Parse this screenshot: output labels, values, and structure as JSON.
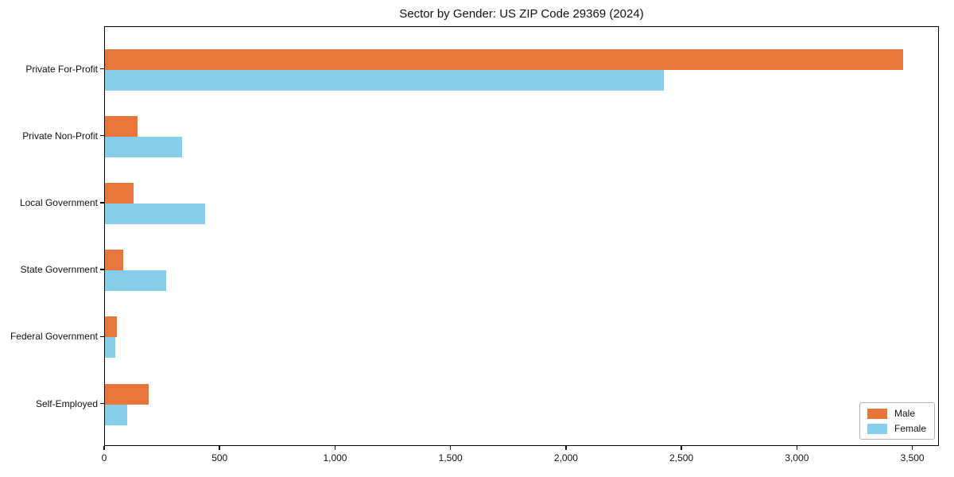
{
  "chart_data": {
    "type": "bar",
    "orientation": "horizontal",
    "title": "Sector by Gender: US ZIP Code 29369 (2024)",
    "categories": [
      "Private For-Profit",
      "Private Non-Profit",
      "Local Government",
      "State Government",
      "Federal Government",
      "Self-Employed"
    ],
    "series": [
      {
        "name": "Male",
        "color": "#e8763b",
        "values": [
          3455,
          140,
          125,
          80,
          50,
          190
        ]
      },
      {
        "name": "Female",
        "color": "#87ceeb",
        "values": [
          2420,
          335,
          435,
          265,
          45,
          95
        ]
      }
    ],
    "xlabel": "",
    "ylabel": "",
    "xlim": [
      0,
      3615
    ],
    "xticks": [
      0,
      500,
      1000,
      1500,
      2000,
      2500,
      3000,
      3500
    ],
    "xtick_labels": [
      "0",
      "500",
      "1,000",
      "1,500",
      "2,000",
      "2,500",
      "3,000",
      "3,500"
    ],
    "grid": false,
    "legend": {
      "position": "lower right",
      "entries": [
        "Male",
        "Female"
      ]
    },
    "colors": {
      "male": "#e8763b",
      "female": "#87ceeb",
      "spine": "#000000",
      "legend_border": "#b3b3b3"
    }
  }
}
